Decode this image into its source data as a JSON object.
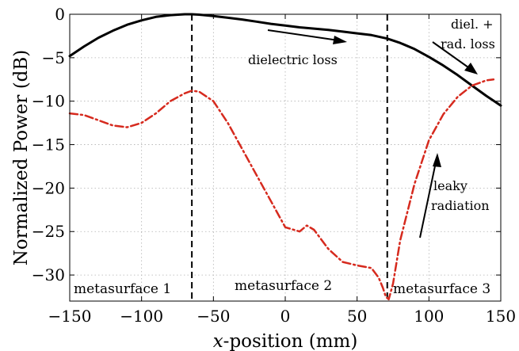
{
  "chart_data": {
    "type": "line",
    "xlabel_italic": "x",
    "xlabel_rest": "-position (mm)",
    "ylabel": "Normalized Power (dB)",
    "xlim": [
      -150,
      150
    ],
    "ylim": [
      -33,
      0
    ],
    "xticks": [
      -150,
      -100,
      -50,
      0,
      50,
      100,
      150
    ],
    "yticks": [
      0,
      -5,
      -10,
      -15,
      -20,
      -25,
      -30
    ],
    "xtick_labels": [
      "−150",
      "−100",
      "−50",
      "0",
      "50",
      "100",
      "150"
    ],
    "ytick_labels": [
      "0",
      "−5",
      "−10",
      "−15",
      "−20",
      "−25",
      "−30"
    ],
    "grid": true,
    "boundaries": [
      -65,
      71
    ],
    "series": [
      {
        "style": "solid",
        "color": "#000000",
        "x": [
          -150,
          -140,
          -130,
          -120,
          -110,
          -100,
          -90,
          -80,
          -70,
          -65,
          -60,
          -50,
          -40,
          -30,
          -20,
          -10,
          0,
          10,
          20,
          30,
          40,
          50,
          60,
          71,
          80,
          90,
          100,
          110,
          120,
          130,
          140,
          150
        ],
        "y": [
          -4.8,
          -3.7,
          -2.7,
          -1.9,
          -1.2,
          -0.7,
          -0.3,
          -0.1,
          0.0,
          0.0,
          -0.05,
          -0.2,
          -0.4,
          -0.6,
          -0.85,
          -1.1,
          -1.3,
          -1.5,
          -1.65,
          -1.8,
          -2.0,
          -2.2,
          -2.4,
          -2.8,
          -3.3,
          -4.0,
          -4.9,
          -5.9,
          -7.0,
          -8.2,
          -9.4,
          -10.5
        ]
      },
      {
        "style": "dashdot",
        "color": "#d62a1e",
        "x": [
          -150,
          -140,
          -130,
          -120,
          -110,
          -100,
          -90,
          -80,
          -70,
          -65,
          -60,
          -50,
          -40,
          -30,
          -20,
          -10,
          0,
          10,
          15,
          20,
          30,
          40,
          50,
          60,
          65,
          68,
          70,
          72,
          75,
          80,
          90,
          100,
          110,
          120,
          130,
          140,
          145
        ],
        "y": [
          -11.4,
          -11.6,
          -12.2,
          -12.8,
          -13.0,
          -12.5,
          -11.4,
          -10.0,
          -9.1,
          -8.8,
          -8.9,
          -10.0,
          -12.5,
          -15.5,
          -18.5,
          -21.5,
          -24.5,
          -25.0,
          -24.3,
          -24.8,
          -27.0,
          -28.5,
          -28.9,
          -29.2,
          -30.3,
          -31.5,
          -32.5,
          -32.8,
          -31.0,
          -26.0,
          -19.5,
          -14.5,
          -11.5,
          -9.5,
          -8.2,
          -7.6,
          -7.5
        ]
      }
    ],
    "annotations": {
      "dielectric_loss": "dielectric loss",
      "diel_rad_line1": "diel. +",
      "diel_rad_line2": "rad. loss",
      "leaky_line1": "leaky",
      "leaky_line2": "radiation"
    },
    "regions": [
      "metasurface 1",
      "metasurface 2",
      "metasurface 3"
    ]
  }
}
